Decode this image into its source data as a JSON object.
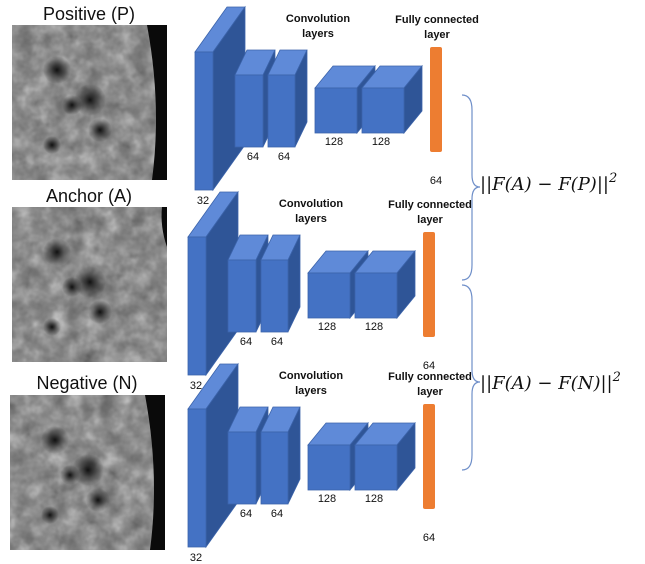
{
  "branches": [
    {
      "image_label": "Positive (P)",
      "conv_label": [
        "Convolution",
        "layers"
      ],
      "fc_label": [
        "Fully connected",
        "layer"
      ],
      "sizes": [
        "32",
        "64",
        "64",
        "128",
        "128"
      ],
      "fc_size": "64"
    },
    {
      "image_label": "Anchor (A)",
      "conv_label": [
        "Convolution",
        "layers"
      ],
      "fc_label": [
        "Fully connected",
        "layer"
      ],
      "sizes": [
        "32",
        "64",
        "64",
        "128",
        "128"
      ],
      "fc_size": "64"
    },
    {
      "image_label": "Negative (N)",
      "conv_label": [
        "Convolution",
        "layers"
      ],
      "fc_label": [
        "Fully connected",
        "layer"
      ],
      "sizes": [
        "32",
        "64",
        "64",
        "128",
        "128"
      ],
      "fc_size": "64"
    }
  ],
  "formulas": [
    {
      "expression": "||F(A) − F(P)||",
      "exponent": "2"
    },
    {
      "expression": "||F(A) − F(N)||",
      "exponent": "2"
    }
  ]
}
